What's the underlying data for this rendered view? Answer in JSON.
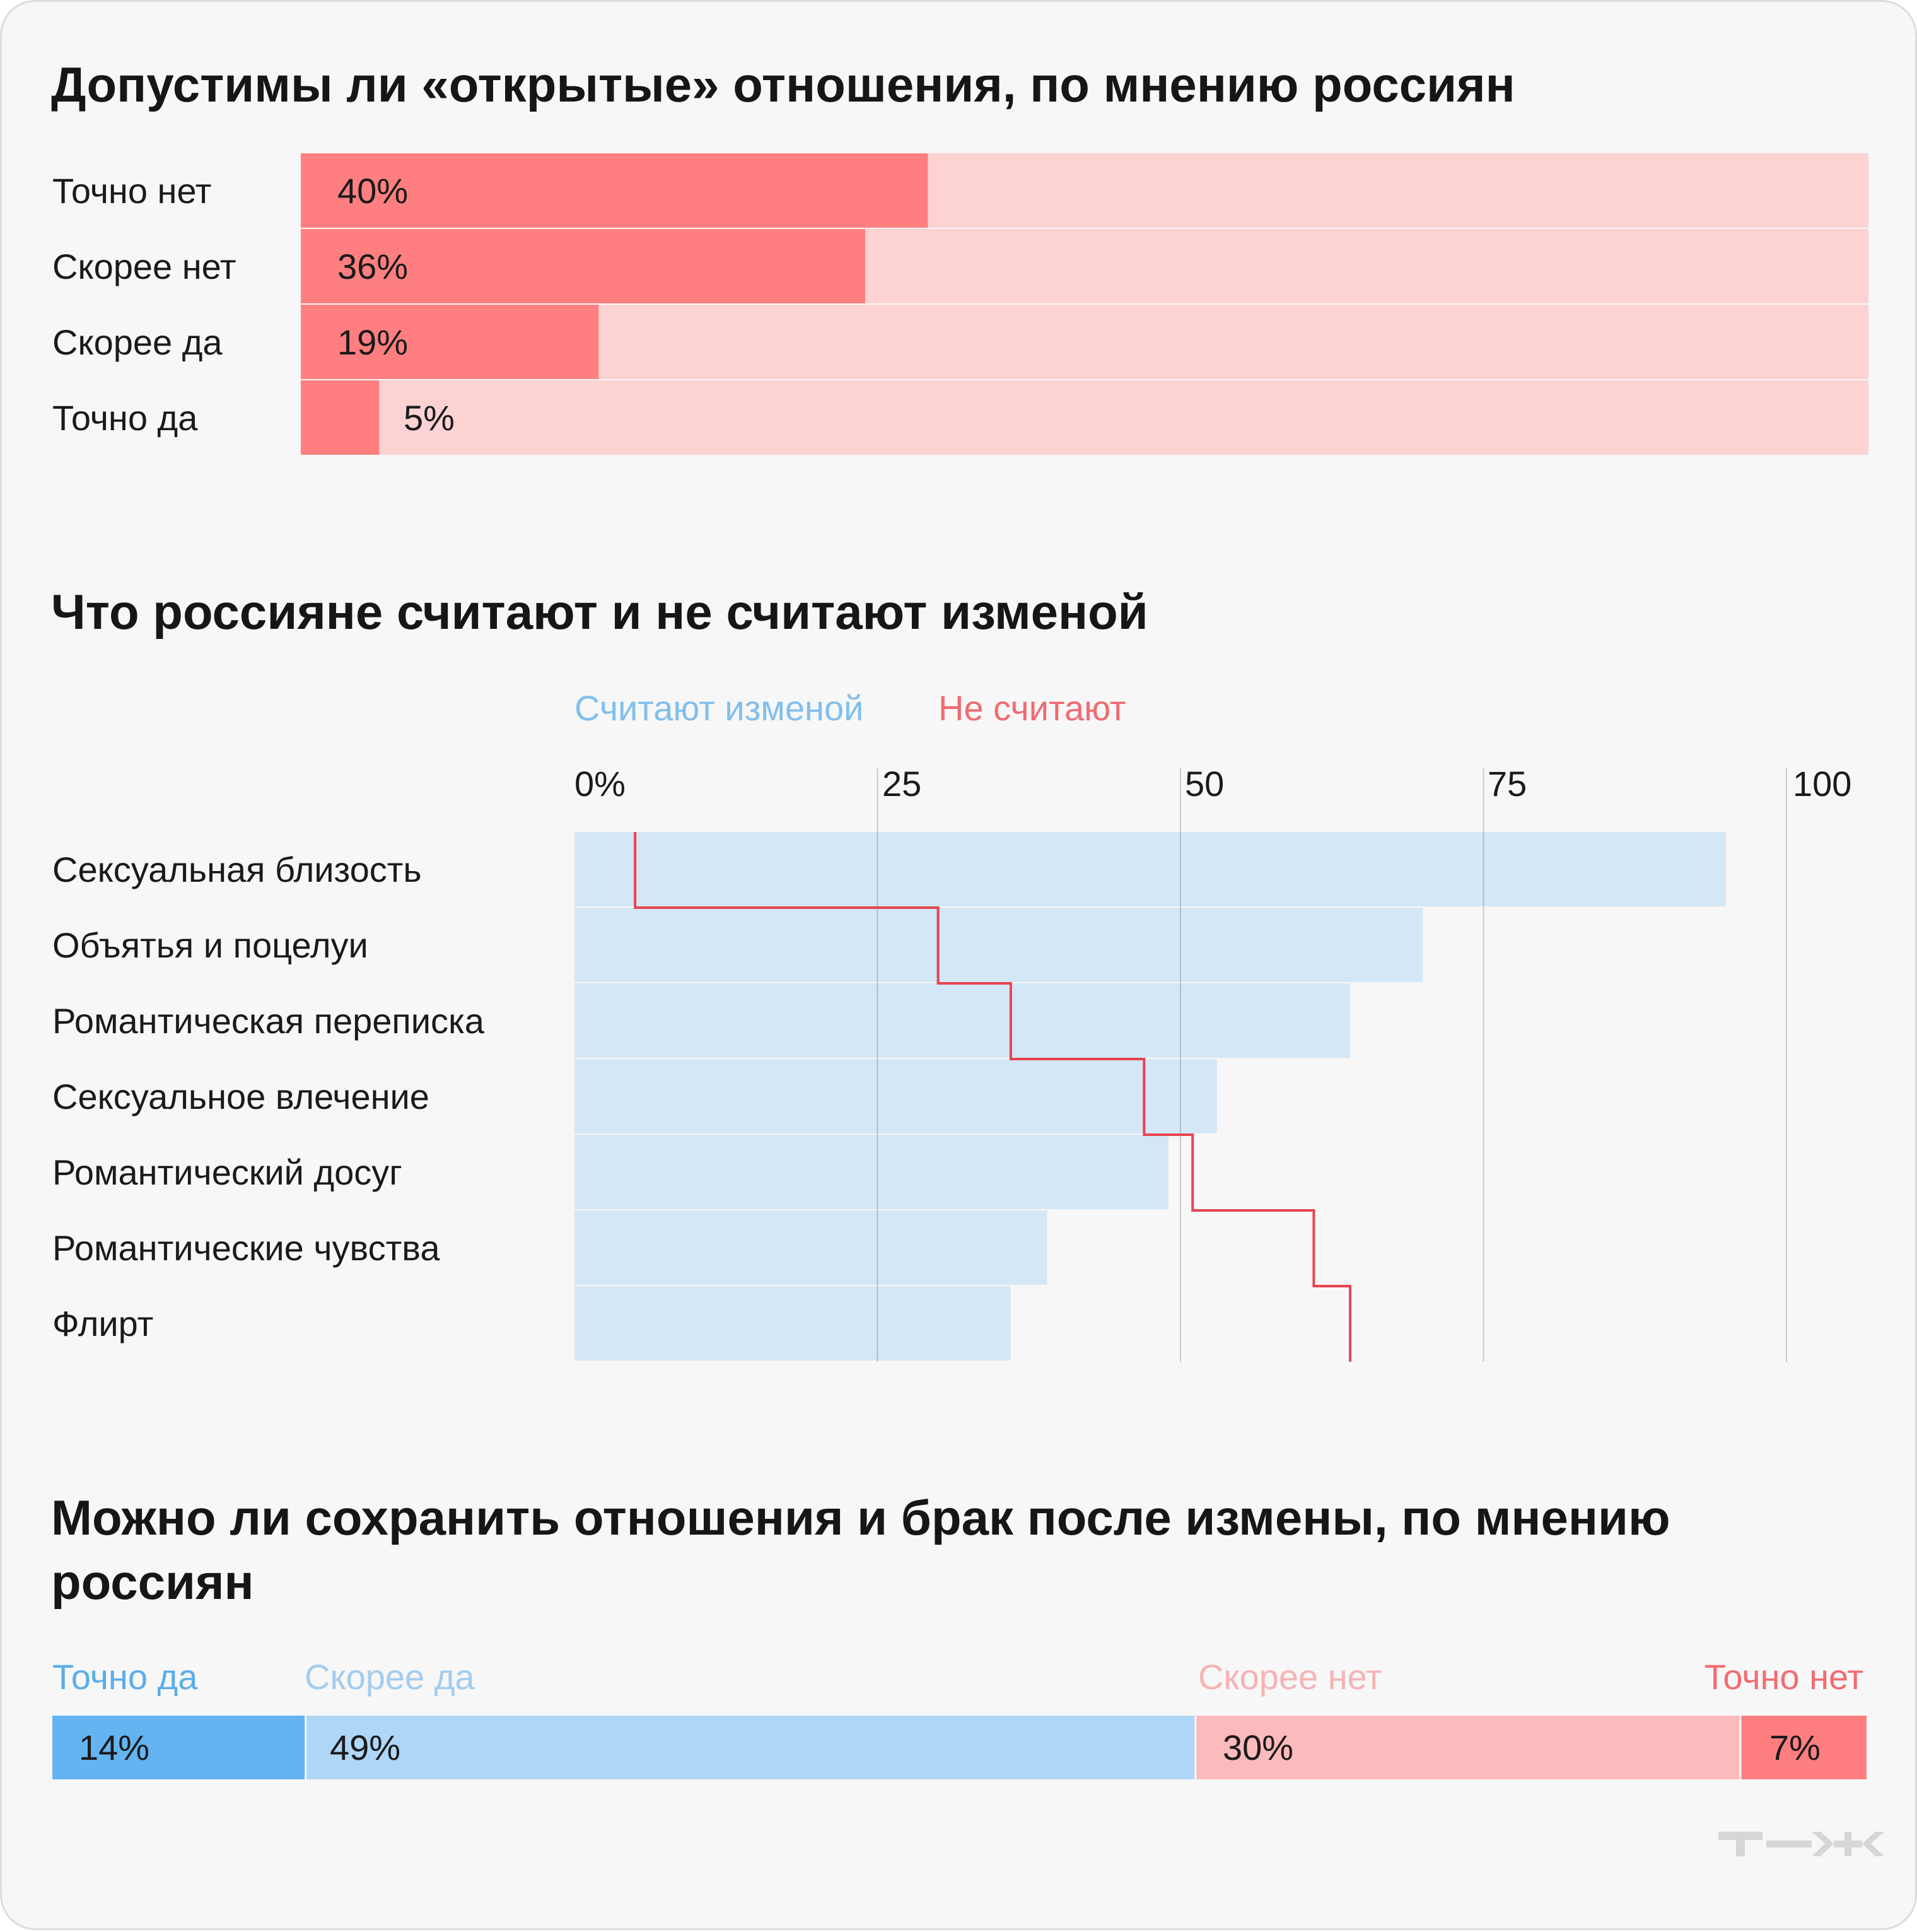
{
  "chart_data": [
    {
      "type": "bar",
      "orientation": "horizontal",
      "title": "Допустимы ли «открытые» отношения, по мнению россиян",
      "categories": [
        "Точно нет",
        "Скорее нет",
        "Скорее да",
        "Точно да"
      ],
      "values": [
        40,
        36,
        19,
        5
      ],
      "value_labels": [
        "40%",
        "36%",
        "19%",
        "5%"
      ],
      "xlim": [
        0,
        100
      ],
      "unit": "%",
      "colors": {
        "bar": "#ff7f80",
        "track": "#fcd2d3"
      }
    },
    {
      "type": "bar",
      "orientation": "horizontal",
      "title": "Что россияне считают и не считают изменой",
      "legend": [
        "Считают изменой",
        "Не считают"
      ],
      "legend_placement": "top",
      "categories": [
        "Сексуальная близость",
        "Объятья и поцелуи",
        "Романтическая переписка",
        "Сексуальное влечение",
        "Романтический досуг",
        "Романтические чувства",
        "Флирт"
      ],
      "series": [
        {
          "name": "Считают изменой",
          "type": "bar",
          "values": [
            95,
            70,
            64,
            53,
            49,
            39,
            36
          ],
          "color": "#d4e7f7"
        },
        {
          "name": "Не считают",
          "type": "step-line",
          "values": [
            5,
            30,
            36,
            47,
            51,
            61,
            64
          ],
          "color": "#e8444d"
        }
      ],
      "xlim": [
        0,
        100
      ],
      "xticks": [
        0,
        25,
        50,
        75,
        100
      ],
      "xtick_labels": [
        "0%",
        "25",
        "50",
        "75",
        "100"
      ],
      "grid": true
    },
    {
      "type": "bar",
      "orientation": "horizontal",
      "stacked": true,
      "title": "Можно ли сохранить отношения и брак после измены, по мнению россиян",
      "categories": [
        "Точно да",
        "Скорее да",
        "Скорее нет",
        "Точно нет"
      ],
      "values": [
        14,
        49,
        30,
        7
      ],
      "value_labels": [
        "14%",
        "49%",
        "30%",
        "7%"
      ],
      "xlim": [
        0,
        100
      ],
      "colors": [
        "#63b4f1",
        "#aed6f6",
        "#fbbabc",
        "#fe7e80"
      ],
      "label_colors": [
        "#5aaee8",
        "#a3cdef",
        "#f6b3b5",
        "#f16d72"
      ]
    }
  ],
  "branding": {
    "logo": "Т—Ж",
    "logo_color": "#d6d6d6"
  }
}
